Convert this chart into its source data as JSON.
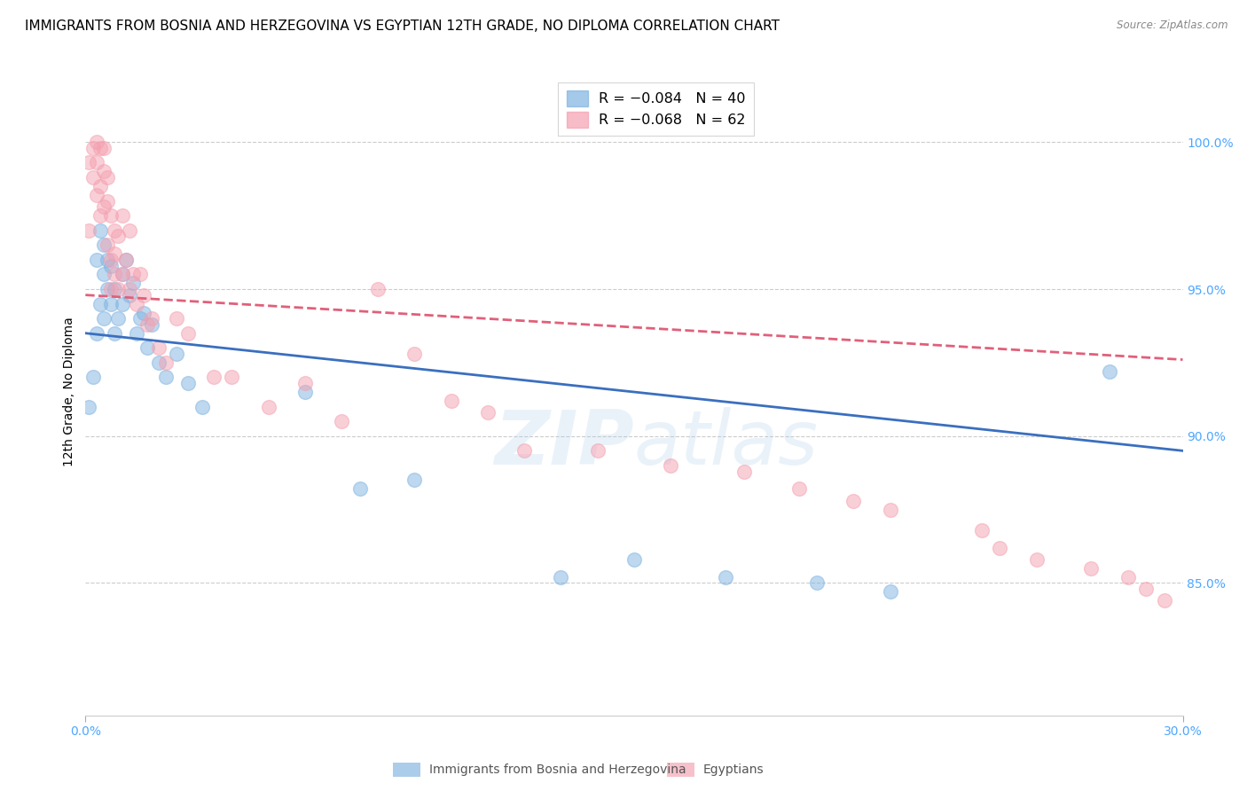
{
  "title": "IMMIGRANTS FROM BOSNIA AND HERZEGOVINA VS EGYPTIAN 12TH GRADE, NO DIPLOMA CORRELATION CHART",
  "source": "Source: ZipAtlas.com",
  "ylabel": "12th Grade, No Diploma",
  "ytick_labels": [
    "100.0%",
    "95.0%",
    "90.0%",
    "85.0%"
  ],
  "ytick_values": [
    1.0,
    0.95,
    0.9,
    0.85
  ],
  "xlim": [
    0.0,
    0.3
  ],
  "ylim": [
    0.805,
    1.025
  ],
  "watermark": "ZIPatlas",
  "bosnia_color": "#7fb3e0",
  "egypt_color": "#f4a0b0",
  "bosnia_line_color": "#3a6fbf",
  "egypt_line_color": "#e0607a",
  "background_color": "#ffffff",
  "grid_color": "#cccccc",
  "title_fontsize": 11,
  "axis_label_fontsize": 10,
  "tick_fontsize": 10,
  "bosnia_scatter_x": [
    0.001,
    0.002,
    0.003,
    0.003,
    0.004,
    0.004,
    0.005,
    0.005,
    0.005,
    0.006,
    0.006,
    0.007,
    0.007,
    0.008,
    0.008,
    0.009,
    0.01,
    0.01,
    0.011,
    0.012,
    0.013,
    0.014,
    0.015,
    0.016,
    0.017,
    0.018,
    0.02,
    0.022,
    0.025,
    0.028,
    0.032,
    0.06,
    0.075,
    0.09,
    0.13,
    0.15,
    0.175,
    0.2,
    0.22,
    0.28
  ],
  "bosnia_scatter_y": [
    0.91,
    0.92,
    0.935,
    0.96,
    0.945,
    0.97,
    0.94,
    0.955,
    0.965,
    0.95,
    0.96,
    0.945,
    0.958,
    0.935,
    0.95,
    0.94,
    0.955,
    0.945,
    0.96,
    0.948,
    0.952,
    0.935,
    0.94,
    0.942,
    0.93,
    0.938,
    0.925,
    0.92,
    0.928,
    0.918,
    0.91,
    0.915,
    0.882,
    0.885,
    0.852,
    0.858,
    0.852,
    0.85,
    0.847,
    0.922
  ],
  "egypt_scatter_x": [
    0.001,
    0.001,
    0.002,
    0.002,
    0.003,
    0.003,
    0.003,
    0.004,
    0.004,
    0.004,
    0.005,
    0.005,
    0.005,
    0.006,
    0.006,
    0.006,
    0.007,
    0.007,
    0.007,
    0.008,
    0.008,
    0.008,
    0.009,
    0.009,
    0.01,
    0.01,
    0.011,
    0.012,
    0.012,
    0.013,
    0.014,
    0.015,
    0.016,
    0.017,
    0.018,
    0.02,
    0.022,
    0.025,
    0.028,
    0.035,
    0.04,
    0.05,
    0.06,
    0.07,
    0.08,
    0.09,
    0.1,
    0.11,
    0.12,
    0.14,
    0.16,
    0.18,
    0.195,
    0.21,
    0.22,
    0.245,
    0.25,
    0.26,
    0.275,
    0.285,
    0.29,
    0.295
  ],
  "egypt_scatter_y": [
    0.97,
    0.993,
    0.988,
    0.998,
    0.982,
    0.993,
    1.0,
    0.998,
    0.985,
    0.975,
    0.998,
    0.99,
    0.978,
    0.988,
    0.98,
    0.965,
    0.975,
    0.96,
    0.95,
    0.97,
    0.962,
    0.955,
    0.968,
    0.95,
    0.975,
    0.955,
    0.96,
    0.97,
    0.95,
    0.955,
    0.945,
    0.955,
    0.948,
    0.938,
    0.94,
    0.93,
    0.925,
    0.94,
    0.935,
    0.92,
    0.92,
    0.91,
    0.918,
    0.905,
    0.95,
    0.928,
    0.912,
    0.908,
    0.895,
    0.895,
    0.89,
    0.888,
    0.882,
    0.878,
    0.875,
    0.868,
    0.862,
    0.858,
    0.855,
    0.852,
    0.848,
    0.844
  ]
}
